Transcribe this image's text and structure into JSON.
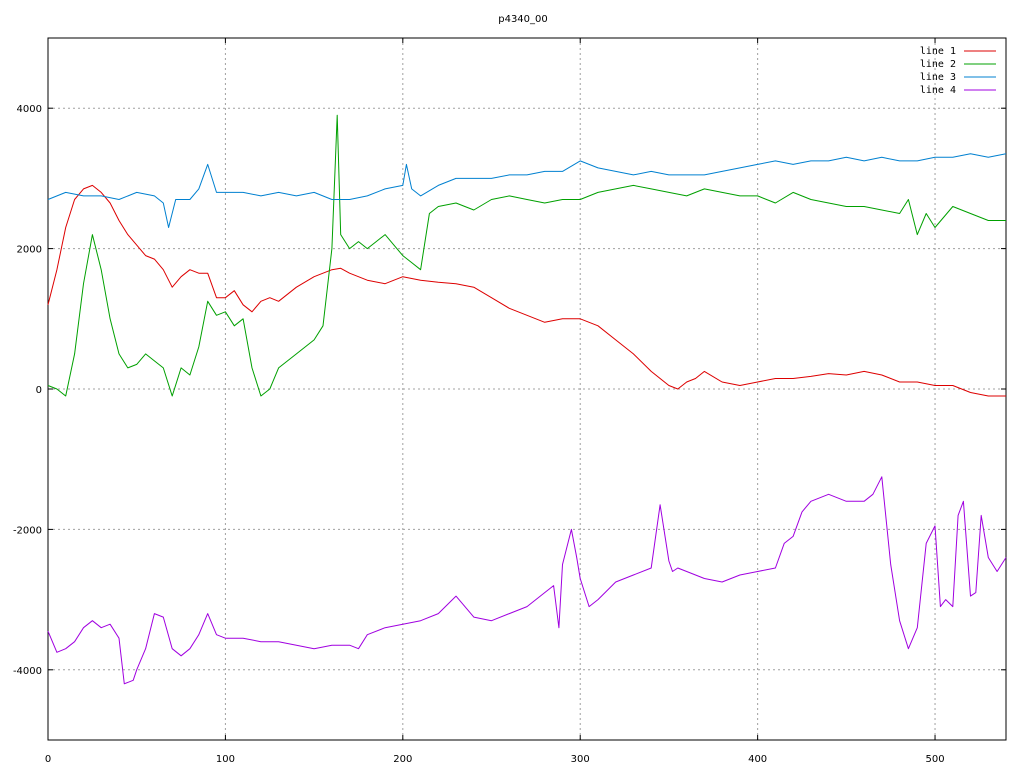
{
  "chart_data": {
    "type": "line",
    "title": "p4340_00",
    "xlabel": "",
    "ylabel": "",
    "xlim": [
      0,
      540
    ],
    "ylim": [
      -5000,
      5000
    ],
    "xticks": [
      0,
      100,
      200,
      300,
      400,
      500
    ],
    "yticks": [
      -4000,
      -2000,
      0,
      2000,
      4000
    ],
    "grid": true,
    "legend_position": "top-right",
    "series": [
      {
        "name": "line 1",
        "color": "#dd0000",
        "x": [
          0,
          5,
          10,
          15,
          20,
          25,
          30,
          35,
          40,
          45,
          50,
          55,
          60,
          65,
          70,
          75,
          80,
          85,
          90,
          95,
          100,
          105,
          110,
          115,
          120,
          125,
          130,
          140,
          150,
          160,
          165,
          170,
          180,
          190,
          200,
          210,
          220,
          230,
          240,
          250,
          260,
          270,
          280,
          290,
          300,
          310,
          320,
          330,
          340,
          350,
          355,
          360,
          365,
          370,
          380,
          390,
          400,
          410,
          420,
          430,
          440,
          450,
          460,
          470,
          480,
          490,
          500,
          510,
          520,
          530,
          540
        ],
        "y": [
          1200,
          1700,
          2300,
          2700,
          2850,
          2900,
          2800,
          2650,
          2400,
          2200,
          2050,
          1900,
          1850,
          1700,
          1450,
          1600,
          1700,
          1650,
          1650,
          1300,
          1300,
          1400,
          1200,
          1100,
          1250,
          1300,
          1250,
          1450,
          1600,
          1700,
          1720,
          1650,
          1550,
          1500,
          1600,
          1550,
          1520,
          1500,
          1450,
          1300,
          1150,
          1050,
          950,
          1000,
          1000,
          900,
          700,
          500,
          250,
          50,
          0,
          100,
          150,
          250,
          100,
          50,
          100,
          150,
          150,
          180,
          220,
          200,
          250,
          200,
          100,
          100,
          50,
          50,
          -50,
          -100,
          -100
        ]
      },
      {
        "name": "line 2",
        "color": "#00a000",
        "x": [
          0,
          5,
          10,
          15,
          20,
          25,
          30,
          35,
          40,
          45,
          50,
          55,
          60,
          65,
          70,
          75,
          80,
          85,
          90,
          95,
          100,
          105,
          110,
          115,
          120,
          125,
          130,
          140,
          150,
          155,
          160,
          163,
          165,
          170,
          175,
          180,
          185,
          190,
          195,
          200,
          205,
          210,
          215,
          220,
          230,
          240,
          250,
          260,
          270,
          280,
          290,
          300,
          310,
          320,
          330,
          340,
          350,
          360,
          370,
          380,
          390,
          400,
          410,
          420,
          430,
          440,
          450,
          460,
          470,
          480,
          485,
          490,
          495,
          500,
          510,
          520,
          530,
          540
        ],
        "y": [
          50,
          0,
          -100,
          500,
          1500,
          2200,
          1700,
          1000,
          500,
          300,
          350,
          500,
          400,
          300,
          -100,
          300,
          200,
          600,
          1250,
          1050,
          1100,
          900,
          1000,
          300,
          -100,
          0,
          300,
          500,
          700,
          900,
          2000,
          3900,
          2200,
          2000,
          2100,
          2000,
          2100,
          2200,
          2050,
          1900,
          1800,
          1700,
          2500,
          2600,
          2650,
          2550,
          2700,
          2750,
          2700,
          2650,
          2700,
          2700,
          2800,
          2850,
          2900,
          2850,
          2800,
          2750,
          2850,
          2800,
          2750,
          2750,
          2650,
          2800,
          2700,
          2650,
          2600,
          2600,
          2550,
          2500,
          2700,
          2200,
          2500,
          2300,
          2600,
          2500,
          2400,
          2400
        ]
      },
      {
        "name": "line 3",
        "color": "#0080d0",
        "x": [
          0,
          10,
          20,
          30,
          40,
          50,
          60,
          65,
          68,
          72,
          80,
          85,
          90,
          95,
          100,
          110,
          120,
          130,
          140,
          150,
          160,
          170,
          180,
          190,
          200,
          202,
          205,
          210,
          220,
          230,
          240,
          250,
          260,
          270,
          280,
          290,
          300,
          310,
          320,
          330,
          340,
          350,
          360,
          370,
          380,
          390,
          400,
          410,
          420,
          430,
          440,
          450,
          460,
          470,
          480,
          490,
          500,
          510,
          520,
          530,
          540
        ],
        "y": [
          2700,
          2800,
          2750,
          2750,
          2700,
          2800,
          2750,
          2650,
          2300,
          2700,
          2700,
          2850,
          3200,
          2800,
          2800,
          2800,
          2750,
          2800,
          2750,
          2800,
          2700,
          2700,
          2750,
          2850,
          2900,
          3200,
          2850,
          2750,
          2900,
          3000,
          3000,
          3000,
          3050,
          3050,
          3100,
          3100,
          3250,
          3150,
          3100,
          3050,
          3100,
          3050,
          3050,
          3050,
          3100,
          3150,
          3200,
          3250,
          3200,
          3250,
          3250,
          3300,
          3250,
          3300,
          3250,
          3250,
          3300,
          3300,
          3350,
          3300,
          3350
        ]
      },
      {
        "name": "line 4",
        "color": "#a000e0",
        "x": [
          0,
          5,
          10,
          15,
          20,
          25,
          30,
          35,
          40,
          43,
          48,
          50,
          55,
          60,
          65,
          70,
          75,
          80,
          85,
          90,
          95,
          100,
          110,
          120,
          130,
          140,
          150,
          160,
          170,
          175,
          180,
          190,
          200,
          210,
          220,
          230,
          240,
          250,
          260,
          270,
          280,
          285,
          288,
          290,
          295,
          298,
          300,
          305,
          310,
          320,
          330,
          340,
          345,
          350,
          352,
          355,
          360,
          370,
          380,
          390,
          400,
          410,
          415,
          420,
          425,
          430,
          440,
          450,
          460,
          465,
          470,
          475,
          480,
          485,
          490,
          495,
          500,
          503,
          506,
          510,
          513,
          516,
          520,
          523,
          526,
          530,
          535,
          540
        ],
        "y": [
          -3450,
          -3750,
          -3700,
          -3600,
          -3400,
          -3300,
          -3400,
          -3350,
          -3550,
          -4200,
          -4150,
          -4000,
          -3700,
          -3200,
          -3250,
          -3700,
          -3800,
          -3700,
          -3500,
          -3200,
          -3500,
          -3550,
          -3550,
          -3600,
          -3600,
          -3650,
          -3700,
          -3650,
          -3650,
          -3700,
          -3500,
          -3400,
          -3350,
          -3300,
          -3200,
          -2950,
          -3250,
          -3300,
          -3200,
          -3100,
          -2900,
          -2800,
          -3400,
          -2500,
          -2000,
          -2400,
          -2700,
          -3100,
          -3000,
          -2750,
          -2650,
          -2550,
          -1650,
          -2450,
          -2600,
          -2550,
          -2600,
          -2700,
          -2750,
          -2650,
          -2600,
          -2550,
          -2200,
          -2100,
          -1750,
          -1600,
          -1500,
          -1600,
          -1600,
          -1500,
          -1250,
          -2500,
          -3300,
          -3700,
          -3400,
          -2200,
          -1950,
          -3100,
          -3000,
          -3100,
          -1800,
          -1600,
          -2950,
          -2900,
          -1800,
          -2400,
          -2600,
          -2400
        ]
      }
    ]
  }
}
